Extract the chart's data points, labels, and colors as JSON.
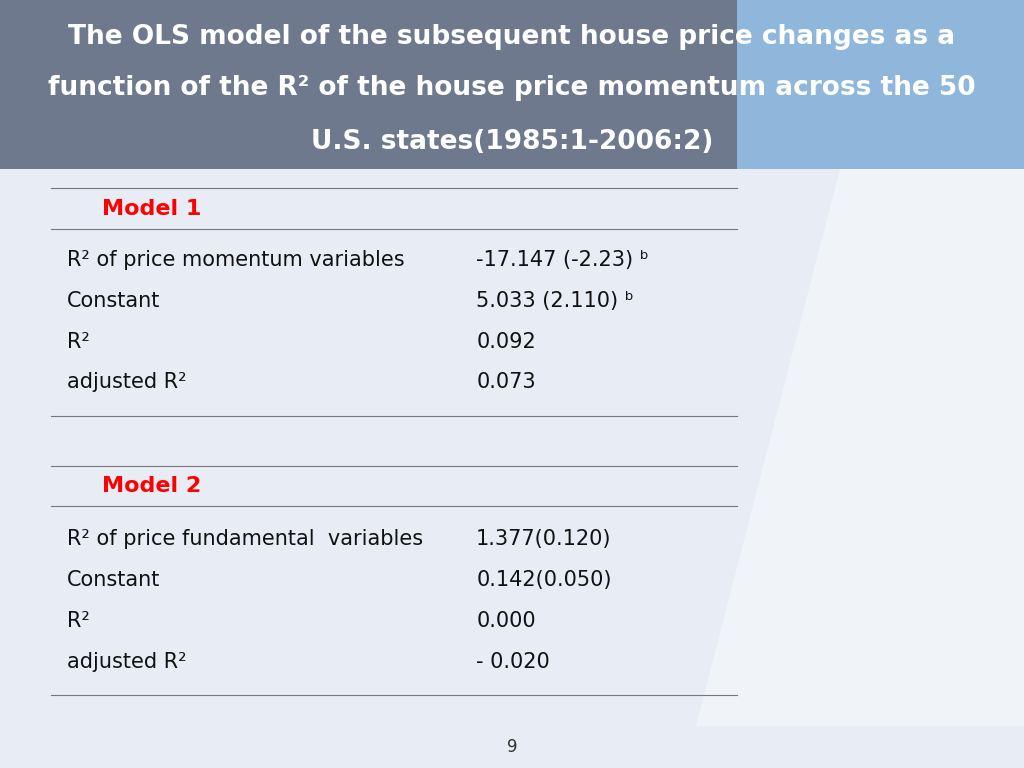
{
  "title_line1": "The OLS model of the subsequent house price changes as a",
  "title_line2": "function of the R² of the house price momentum across the 50",
  "title_line3": "U.S. states(1985:1-2006:2)",
  "title_bg_color": "#1E3A6E",
  "title_text_color": "#FFFFFF",
  "body_bg_color": "#E8EDF5",
  "footer_bg_color": "#C0C5D0",
  "model1_label": "Model 1",
  "model1_label_color": "#FF0000",
  "model1_rows": [
    {
      "label": "R² of price momentum variables",
      "value": "-17.147 (-2.23) ᵇ"
    },
    {
      "label": "Constant",
      "value": "5.033 (2.110) ᵇ"
    },
    {
      "label": "R²",
      "value": "0.092"
    },
    {
      "label": "adjusted R²",
      "value": "0.073"
    }
  ],
  "model2_label": "Model 2",
  "model2_label_color": "#FF0000",
  "model2_rows": [
    {
      "label": "R² of price fundamental  variables",
      "value": "1.377(0.120)"
    },
    {
      "label": "Constant",
      "value": "0.142(0.050)"
    },
    {
      "label": "R²",
      "value": "0.000"
    },
    {
      "label": "adjusted R²",
      "value": "- 0.020"
    }
  ],
  "page_number": "9",
  "line_color": "#777777",
  "font_size_title": 19,
  "font_size_model_label": 16,
  "font_size_row": 15
}
